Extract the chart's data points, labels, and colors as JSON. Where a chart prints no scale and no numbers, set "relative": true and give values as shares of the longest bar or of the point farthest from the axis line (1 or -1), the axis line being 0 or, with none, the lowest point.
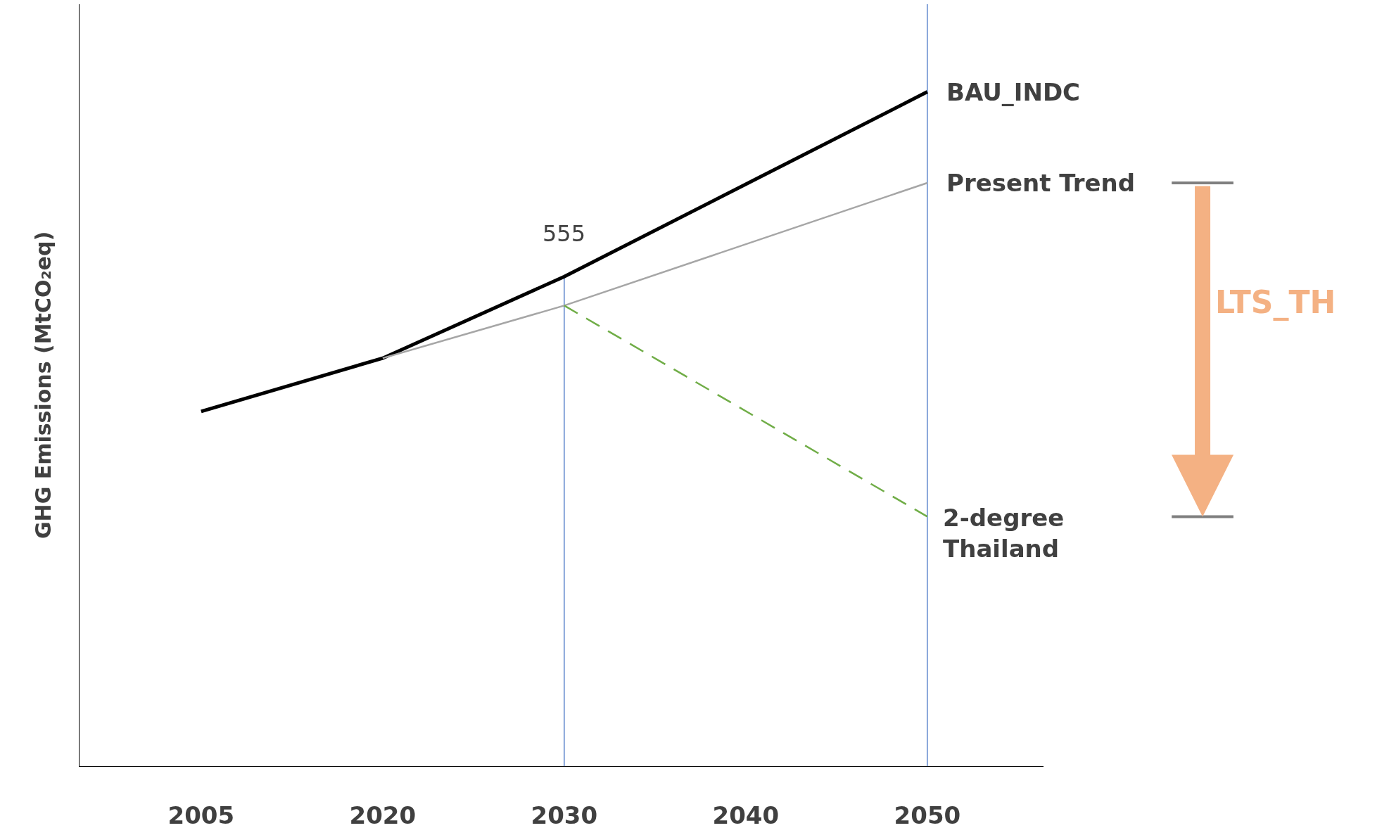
{
  "chart_data": {
    "type": "line",
    "relative": true,
    "ylabel": "GHG Emissions (MtCO₂eq)",
    "categories": [
      "2005",
      "2020",
      "2030",
      "2040",
      "2050"
    ],
    "series": [
      {
        "name": "BAU_INDC",
        "color": "#000000",
        "values": [
          0.526,
          0.605,
          0.726,
          null,
          1
        ]
      },
      {
        "name": "Present Trend",
        "color": "#a6a6a6",
        "values": [
          null,
          0.605,
          0.683,
          null,
          0.865
        ]
      },
      {
        "name": "2-degree Thailand",
        "color": "#70ad47",
        "line_style": "dashed",
        "values": [
          null,
          null,
          0.683,
          null,
          0.37
        ]
      }
    ],
    "ref_lines": [
      {
        "axis": "x",
        "value": "2030",
        "color": "#4472c4"
      },
      {
        "axis": "x",
        "value": "2050",
        "color": "#4472c4"
      }
    ],
    "annotations": [
      {
        "text": "555",
        "x": "2030",
        "y": 0.726
      },
      "LTS_TH"
    ],
    "marker": "none",
    "grid": false,
    "legend": false
  }
}
